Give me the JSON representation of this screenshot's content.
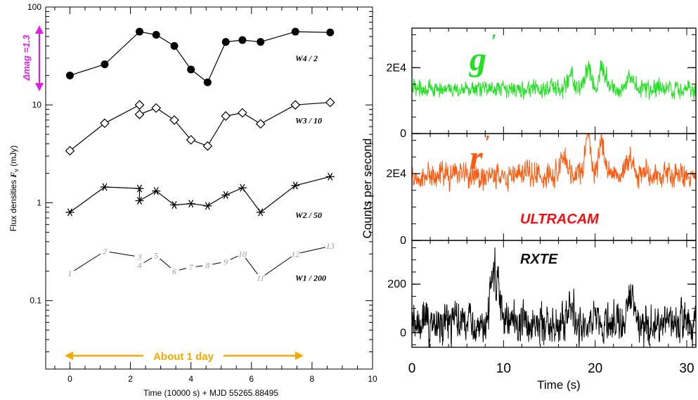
{
  "chart_data": [
    {
      "type": "scatter",
      "xlabel": "Time (10000 s) + MJD 55265.88495",
      "ylabel_prefix": "Flux densities",
      "ylabel_symbol": "F",
      "ylabel_sub": "ν",
      "ylabel_unit": "(mJy)",
      "xlim": [
        -0.8,
        10
      ],
      "ylim": [
        0.02,
        100
      ],
      "yscale": "log",
      "xticks": [
        0,
        2,
        4,
        6,
        8,
        10
      ],
      "yticks": [
        {
          "value": 0.1,
          "label": "0.1"
        },
        {
          "value": 1,
          "label": "1"
        },
        {
          "value": 10,
          "label": "10"
        },
        {
          "value": 100,
          "label": "100"
        }
      ],
      "series": [
        {
          "name": "W4 / 2",
          "marker": "filled-circle",
          "x": [
            0,
            1.15,
            2.3,
            2.85,
            3.45,
            4.0,
            4.55,
            5.15,
            5.7,
            6.3,
            7.45,
            8.6
          ],
          "y": [
            20,
            26,
            56,
            52,
            40,
            23,
            17,
            44,
            46,
            44,
            56,
            55
          ]
        },
        {
          "name": "W3 / 10",
          "marker": "open-diamond",
          "x": [
            0,
            1.15,
            2.3,
            2.3,
            2.85,
            3.45,
            4.0,
            4.55,
            5.15,
            5.7,
            6.3,
            7.45,
            8.6
          ],
          "y": [
            3.4,
            6.5,
            10.0,
            8.0,
            9.3,
            7.0,
            4.4,
            3.8,
            7.7,
            8.3,
            6.4,
            10.0,
            10.6
          ]
        },
        {
          "name": "W2 / 50",
          "marker": "asterisk",
          "x": [
            0,
            1.15,
            2.3,
            2.3,
            2.85,
            3.45,
            4.0,
            4.55,
            5.15,
            5.7,
            6.3,
            7.45,
            8.6
          ],
          "y": [
            0.8,
            1.45,
            1.4,
            1.05,
            1.32,
            0.95,
            0.98,
            0.93,
            1.2,
            1.42,
            0.8,
            1.5,
            1.85
          ]
        },
        {
          "name": "W1 / 200",
          "marker": "number",
          "labels": [
            "1",
            "2",
            "3",
            "4",
            "5",
            "6",
            "7",
            "8",
            "9",
            "10",
            "11",
            "12",
            "13"
          ],
          "x": [
            0,
            1.15,
            2.3,
            2.3,
            2.85,
            3.45,
            4.0,
            4.55,
            5.15,
            5.7,
            6.3,
            7.45,
            8.6
          ],
          "y": [
            0.19,
            0.32,
            0.28,
            0.23,
            0.29,
            0.2,
            0.22,
            0.23,
            0.25,
            0.3,
            0.17,
            0.3,
            0.36
          ]
        }
      ],
      "annotations": {
        "delta_mag": "Δmag =1.3",
        "duration": "About 1 day"
      },
      "colors": {
        "delta_mag": "#e020e0",
        "duration": "#f5a800",
        "w1": "#9a9a9a"
      }
    },
    {
      "type": "line",
      "xlabel": "Time (s)",
      "ylabel": "Counts per second",
      "xlim": [
        0,
        31
      ],
      "xticks": [
        0,
        10,
        20,
        30
      ],
      "panels": [
        {
          "name": "g′",
          "label_text": "g",
          "color": "#22e022",
          "ylim": [
            0,
            32000
          ],
          "ytick_labels": [
            {
              "value": 0,
              "label": "0"
            },
            {
              "value": 20000,
              "label": "2E4"
            }
          ],
          "mean": 13500,
          "noise": 1800,
          "flares": [
            {
              "t": 17.3,
              "amp": 4500
            },
            {
              "t": 19.2,
              "amp": 6500
            },
            {
              "t": 20.8,
              "amp": 7500
            },
            {
              "t": 23.8,
              "amp": 4500
            }
          ]
        },
        {
          "name": "r′",
          "label_text": "r",
          "color": "#ff5a10",
          "ylim": [
            0,
            32000
          ],
          "ytick_labels": [
            {
              "value": 0,
              "label": "0"
            },
            {
              "value": 20000,
              "label": "2E4"
            }
          ],
          "mean": 19500,
          "noise": 2500,
          "flares": [
            {
              "t": 16.5,
              "amp": 5000
            },
            {
              "t": 19.2,
              "amp": 11000
            },
            {
              "t": 20.8,
              "amp": 9000
            },
            {
              "t": 23.8,
              "amp": 5000
            }
          ],
          "instrument": "ULTRACAM"
        },
        {
          "name": "RXTE",
          "color": "#000000",
          "ylim": [
            -60,
            380
          ],
          "ytick_labels": [
            {
              "value": 0,
              "label": "0"
            },
            {
              "value": 200,
              "label": "200"
            }
          ],
          "mean": 40,
          "noise": 55,
          "flares": [
            {
              "t": 9.3,
              "amp": 170
            },
            {
              "t": 8.7,
              "amp": 120
            },
            {
              "t": 17.5,
              "amp": 60
            },
            {
              "t": 23.8,
              "amp": 140
            }
          ]
        }
      ]
    }
  ]
}
